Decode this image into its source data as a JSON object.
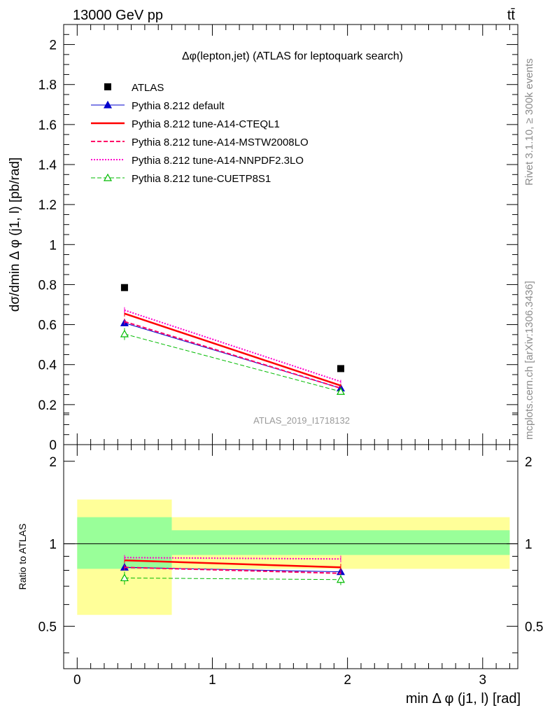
{
  "header": {
    "energy_label": "13000 GeV pp",
    "process_label": "tt̄"
  },
  "side_labels": {
    "rivet": "Rivet 3.1.10, ≥ 300k events",
    "mcplots": "mcplots.cern.ch [arXiv:1306.3436]"
  },
  "watermark": "ATLAS_2019_I1718132",
  "chart_data": {
    "type": "line",
    "title": "Δφ(lepton,jet) (ATLAS for leptoquark search)",
    "xlabel": "min Δ φ (j1, l) [rad]",
    "ylabel": "dσ/dmin Δ φ (j1, l) [pb/rad]",
    "ratio_ylabel": "Ratio to ATLAS",
    "xlim": [
      -0.1,
      3.26
    ],
    "ylim": [
      0,
      2.1
    ],
    "ratio_ylim": [
      0.35,
      2.3
    ],
    "x_ticks": [
      0,
      1,
      2,
      3
    ],
    "y_ticks": [
      0,
      0.2,
      0.4,
      0.6,
      0.8,
      1,
      1.2,
      1.4,
      1.6,
      1.8,
      2
    ],
    "ratio_ticks": [
      0.5,
      1,
      2
    ],
    "bins": [
      [
        0,
        0.7
      ],
      [
        0.7,
        3.2
      ]
    ],
    "x": [
      0.35,
      1.95
    ],
    "data": {
      "name": "ATLAS",
      "values": [
        0.785,
        0.38
      ],
      "ratio_band_stat": [
        [
          0.81,
          1.25
        ],
        [
          0.91,
          1.12
        ]
      ],
      "ratio_band_total": [
        [
          0.55,
          1.45
        ],
        [
          0.81,
          1.25
        ]
      ]
    },
    "series": [
      {
        "name": "Pythia 8.212 default",
        "values": [
          0.608,
          0.282
        ],
        "errors": [
          0.012,
          0.008
        ],
        "ratio": [
          0.82,
          0.79
        ],
        "color": "#0000cc",
        "style": "solid",
        "width": 1,
        "marker": "triangle-filled"
      },
      {
        "name": "Pythia 8.212 tune-A14-CTEQL1",
        "values": [
          0.655,
          0.295
        ],
        "errors": [
          0.015,
          0.009
        ],
        "ratio": [
          0.87,
          0.82
        ],
        "color": "#ff0000",
        "style": "solid",
        "width": 2.5,
        "marker": "none"
      },
      {
        "name": "Pythia 8.212 tune-A14-MSTW2008LO",
        "values": [
          0.615,
          0.282
        ],
        "errors": [
          0.015,
          0.009
        ],
        "ratio": [
          0.82,
          0.78
        ],
        "color": "#ff0066",
        "style": "dashed",
        "width": 2,
        "marker": "none"
      },
      {
        "name": "Pythia 8.212 tune-A14-NNPDF2.3LO",
        "values": [
          0.672,
          0.315
        ],
        "errors": [
          0.015,
          0.009
        ],
        "ratio": [
          0.89,
          0.88
        ],
        "color": "#ff00cc",
        "style": "dotted",
        "width": 2,
        "marker": "none"
      },
      {
        "name": "Pythia 8.212 tune-CUETP8S1",
        "values": [
          0.553,
          0.265
        ],
        "errors": [
          0.03,
          0.012
        ],
        "ratio": [
          0.75,
          0.74
        ],
        "color": "#00bb00",
        "style": "dashed",
        "width": 1,
        "marker": "triangle-open"
      }
    ]
  }
}
